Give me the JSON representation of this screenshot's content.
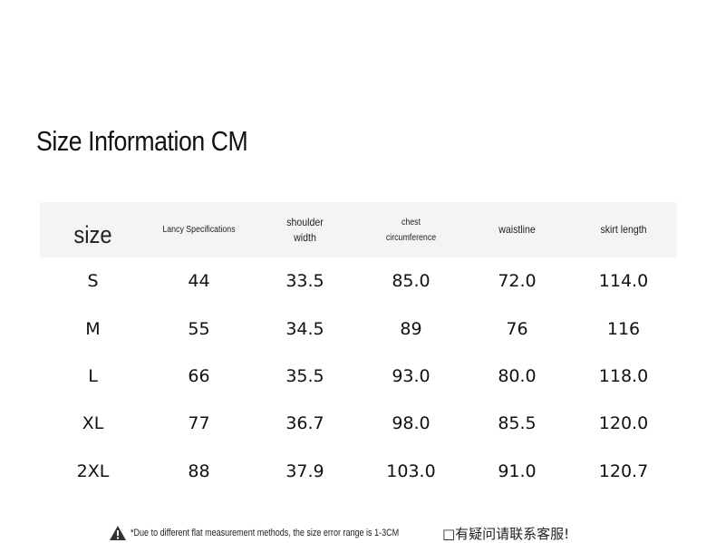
{
  "title": "Size Information CM",
  "table": {
    "headers": [
      [
        "size"
      ],
      [
        "Lancy Specifications"
      ],
      [
        "shoulder",
        "width"
      ],
      [
        "chest",
        "circumference"
      ],
      [
        "waistline"
      ],
      [
        "skirt length"
      ]
    ],
    "rows": [
      [
        "S",
        "44",
        "33.5",
        "85.0",
        "72.0",
        "114.0"
      ],
      [
        "M",
        "55",
        "34.5",
        "89",
        "76",
        "116"
      ],
      [
        "L",
        "66",
        "35.5",
        "93.0",
        "80.0",
        "118.0"
      ],
      [
        "XL",
        "77",
        "36.7",
        "98.0",
        "85.5",
        "120.0"
      ],
      [
        "2XL",
        "88",
        "37.9",
        "103.0",
        "91.0",
        "120.7"
      ]
    ]
  },
  "note": {
    "icon": "warning-icon",
    "text_en": "*Due to different flat measurement methods, the size error range is 1-3CM",
    "text_cn": "□有疑问请联系客服!"
  }
}
